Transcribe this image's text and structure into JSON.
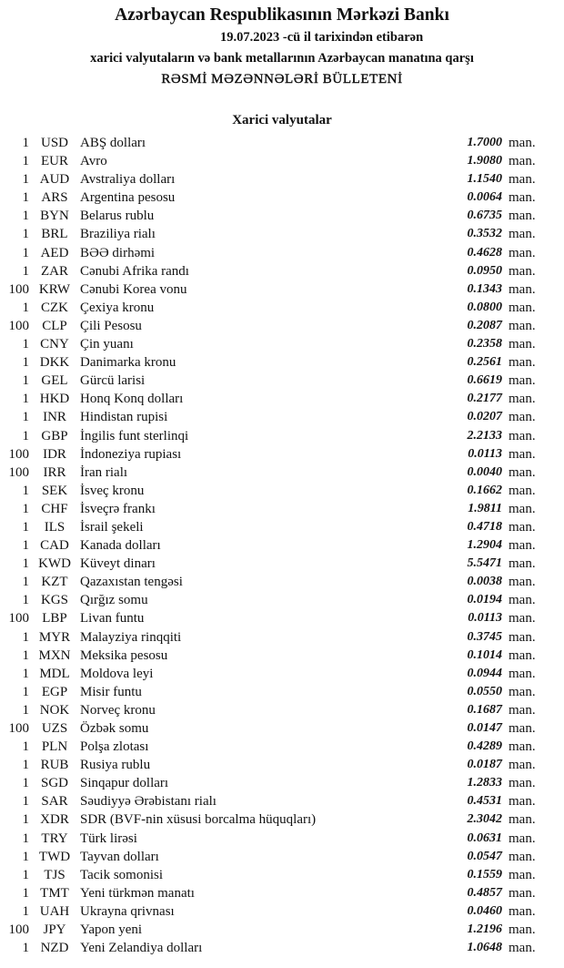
{
  "header": {
    "bank": "Azərbaycan Respublikasının Mərkəzi Bankı",
    "date_line": "19.07.2023 -cü il tarixindən etibarən",
    "subtitle": "xarici valyutaların və bank metallarının Azərbaycan manatına qarşı",
    "bulletin": "RƏSMİ MƏZƏNNƏLƏRİ BÜLLETENİ"
  },
  "section_title": "Xarici valyutalar",
  "unit": "man.",
  "rows": [
    {
      "amount": "1",
      "code": "USD",
      "name": "ABŞ dolları",
      "rate": "1.7000"
    },
    {
      "amount": "1",
      "code": "EUR",
      "name": "Avro",
      "rate": "1.9080"
    },
    {
      "amount": "1",
      "code": "AUD",
      "name": "Avstraliya dolları",
      "rate": "1.1540"
    },
    {
      "amount": "1",
      "code": "ARS",
      "name": "Argentina pesosu",
      "rate": "0.0064"
    },
    {
      "amount": "1",
      "code": "BYN",
      "name": "Belarus rublu",
      "rate": "0.6735"
    },
    {
      "amount": "1",
      "code": "BRL",
      "name": "Braziliya rialı",
      "rate": "0.3532"
    },
    {
      "amount": "1",
      "code": "AED",
      "name": "BƏƏ dirhəmi",
      "rate": "0.4628"
    },
    {
      "amount": "1",
      "code": "ZAR",
      "name": "Cənubi Afrika randı",
      "rate": "0.0950"
    },
    {
      "amount": "100",
      "code": "KRW",
      "name": "Cənubi Korea vonu",
      "rate": "0.1343"
    },
    {
      "amount": "1",
      "code": "CZK",
      "name": "Çexiya kronu",
      "rate": "0.0800"
    },
    {
      "amount": "100",
      "code": "CLP",
      "name": "Çili Pesosu",
      "rate": "0.2087"
    },
    {
      "amount": "1",
      "code": "CNY",
      "name": "Çin yuanı",
      "rate": "0.2358"
    },
    {
      "amount": "1",
      "code": "DKK",
      "name": "Danimarka kronu",
      "rate": "0.2561"
    },
    {
      "amount": "1",
      "code": "GEL",
      "name": "Gürcü larisi",
      "rate": "0.6619"
    },
    {
      "amount": "1",
      "code": "HKD",
      "name": "Honq Konq dolları",
      "rate": "0.2177"
    },
    {
      "amount": "1",
      "code": "INR",
      "name": "Hindistan rupisi",
      "rate": "0.0207"
    },
    {
      "amount": "1",
      "code": "GBP",
      "name": "İngilis funt sterlinqi",
      "rate": "2.2133"
    },
    {
      "amount": "100",
      "code": "IDR",
      "name": "İndoneziya rupiası",
      "rate": "0.0113"
    },
    {
      "amount": "100",
      "code": "IRR",
      "name": "İran rialı",
      "rate": "0.0040"
    },
    {
      "amount": "1",
      "code": "SEK",
      "name": "İsveç kronu",
      "rate": "0.1662"
    },
    {
      "amount": "1",
      "code": "CHF",
      "name": "İsveçrə frankı",
      "rate": "1.9811"
    },
    {
      "amount": "1",
      "code": "ILS",
      "name": "İsrail şekeli",
      "rate": "0.4718"
    },
    {
      "amount": "1",
      "code": "CAD",
      "name": "Kanada dolları",
      "rate": "1.2904"
    },
    {
      "amount": "1",
      "code": "KWD",
      "name": "Küveyt dinarı",
      "rate": "5.5471"
    },
    {
      "amount": "1",
      "code": "KZT",
      "name": "Qazaxıstan tengəsi",
      "rate": "0.0038"
    },
    {
      "amount": "1",
      "code": "KGS",
      "name": "Qırğız somu",
      "rate": "0.0194"
    },
    {
      "amount": "100",
      "code": "LBP",
      "name": "Livan funtu",
      "rate": "0.0113"
    },
    {
      "amount": "1",
      "code": "MYR",
      "name": "Malayziya rinqqiti",
      "rate": "0.3745"
    },
    {
      "amount": "1",
      "code": "MXN",
      "name": "Meksika pesosu",
      "rate": "0.1014"
    },
    {
      "amount": "1",
      "code": "MDL",
      "name": "Moldova leyi",
      "rate": "0.0944"
    },
    {
      "amount": "1",
      "code": "EGP",
      "name": "Misir funtu",
      "rate": "0.0550"
    },
    {
      "amount": "1",
      "code": "NOK",
      "name": "Norveç kronu",
      "rate": "0.1687"
    },
    {
      "amount": "100",
      "code": "UZS",
      "name": "Özbək somu",
      "rate": "0.0147"
    },
    {
      "amount": "1",
      "code": "PLN",
      "name": "Polşa zlotası",
      "rate": "0.4289"
    },
    {
      "amount": "1",
      "code": "RUB",
      "name": "Rusiya rublu",
      "rate": "0.0187"
    },
    {
      "amount": "1",
      "code": "SGD",
      "name": "Sinqapur dolları",
      "rate": "1.2833"
    },
    {
      "amount": "1",
      "code": "SAR",
      "name": "Səudiyyə Ərəbistanı rialı",
      "rate": "0.4531"
    },
    {
      "amount": "1",
      "code": "XDR",
      "name": "SDR (BVF-nin xüsusi borcalma hüquqları)",
      "rate": "2.3042"
    },
    {
      "amount": "1",
      "code": "TRY",
      "name": "Türk lirəsi",
      "rate": "0.0631"
    },
    {
      "amount": "1",
      "code": "TWD",
      "name": "Tayvan dolları",
      "rate": "0.0547"
    },
    {
      "amount": "1",
      "code": "TJS",
      "name": "Tacik somonisi",
      "rate": "0.1559"
    },
    {
      "amount": "1",
      "code": "TMT",
      "name": "Yeni türkmən manatı",
      "rate": "0.4857"
    },
    {
      "amount": "1",
      "code": "UAH",
      "name": "Ukrayna qrivnası",
      "rate": "0.0460"
    },
    {
      "amount": "100",
      "code": "JPY",
      "name": "Yapon yeni",
      "rate": "1.2196"
    },
    {
      "amount": "1",
      "code": "NZD",
      "name": "Yeni Zelandiya dolları",
      "rate": "1.0648"
    }
  ]
}
